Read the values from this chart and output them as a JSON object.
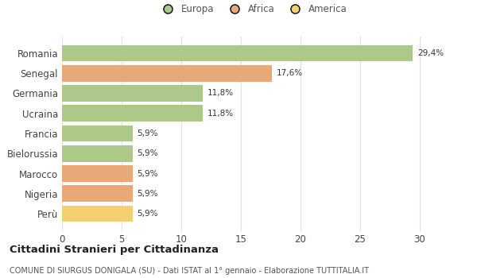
{
  "categories": [
    "Romania",
    "Senegal",
    "Germania",
    "Ucraina",
    "Francia",
    "Bielorussia",
    "Marocco",
    "Nigeria",
    "Perù"
  ],
  "values": [
    29.4,
    17.6,
    11.8,
    11.8,
    5.9,
    5.9,
    5.9,
    5.9,
    5.9
  ],
  "labels": [
    "29,4%",
    "17,6%",
    "11,8%",
    "11,8%",
    "5,9%",
    "5,9%",
    "5,9%",
    "5,9%",
    "5,9%"
  ],
  "colors": [
    "#adc98a",
    "#e8a878",
    "#adc98a",
    "#adc98a",
    "#adc98a",
    "#adc98a",
    "#e8a878",
    "#e8a878",
    "#f5d070"
  ],
  "legend": [
    {
      "label": "Europa",
      "color": "#adc98a"
    },
    {
      "label": "Africa",
      "color": "#e8a878"
    },
    {
      "label": "America",
      "color": "#f5d070"
    }
  ],
  "xlim": [
    0,
    32
  ],
  "xticks": [
    0,
    5,
    10,
    15,
    20,
    25,
    30
  ],
  "title": "Cittadini Stranieri per Cittadinanza",
  "subtitle": "COMUNE DI SIURGUS DONIGALA (SU) - Dati ISTAT al 1° gennaio - Elaborazione TUTTITALIA.IT",
  "bg_color": "#ffffff",
  "grid_color": "#e0e0e0",
  "bar_height": 0.82
}
